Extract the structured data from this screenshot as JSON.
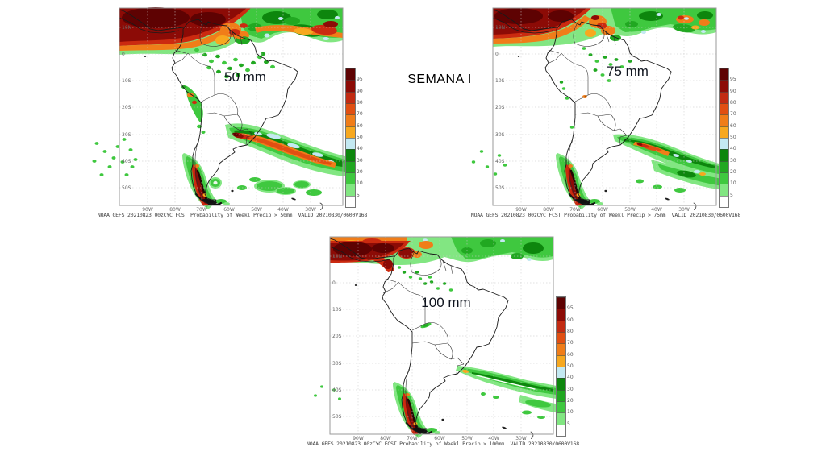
{
  "title": "SEMANA I",
  "panels": [
    {
      "threshold_label": "50 mm",
      "caption": "NOAA GEFS 20210823 00zCYC FCST Probability of Weekl Precip > 50mm  VALID 20210830/0600V168"
    },
    {
      "threshold_label": "75 mm",
      "caption": "NOAA GEFS 20210823 00zCYC FCST Probability of Weekl Precip > 75mm  VALID 20210830/0600V168"
    },
    {
      "threshold_label": "100 mm",
      "caption": "NOAA GEFS 20210823 00zCYC FCST Probability of Weekl Precip > 100mm  VALID 20210830/0600V168"
    }
  ],
  "axes": {
    "lat_labels": [
      "10N",
      "0",
      "10S",
      "20S",
      "30S",
      "40S",
      "50S"
    ],
    "lon_labels": [
      "90W",
      "80W",
      "70W",
      "60W",
      "50W",
      "40W",
      "30W"
    ]
  },
  "colorbar": {
    "tick_labels": [
      "95",
      "90",
      "80",
      "70",
      "60",
      "50",
      "40",
      "30",
      "20",
      "10",
      "5"
    ],
    "segment_colors_top_to_bottom": [
      "#5e0202",
      "#8c0b06",
      "#c22b12",
      "#e14f12",
      "#f07d19",
      "#f7a81f",
      "#c4e9f2",
      "#0d860d",
      "#21a821",
      "#3fc83f",
      "#82e682",
      "#ffffff"
    ]
  },
  "palette": {
    "g1": "#82e682",
    "g2": "#3fc83f",
    "g3": "#21a821",
    "g4": "#0d860d",
    "bl": "#c4e9f2",
    "o1": "#f7a81f",
    "o2": "#f07d19",
    "o3": "#e14f12",
    "r1": "#cb2a10",
    "r2": "#8c0b06",
    "r3": "#5e0202",
    "bk": "#200a04",
    "wh": "#ffffff"
  },
  "chart_data": {
    "type": "heatmap",
    "subtype": "geographic-probability-maps",
    "title": "SEMANA I",
    "region": "South America",
    "units": "%",
    "panels": [
      {
        "threshold_mm": 50,
        "label": "50 mm",
        "caption": "NOAA GEFS 20210823 00zCYC FCST Probability of Weekl Precip > 50mm  VALID 20210830/0600V168"
      },
      {
        "threshold_mm": 75,
        "label": "75 mm",
        "caption": "NOAA GEFS 20210823 00zCYC FCST Probability of Weekl Precip > 75mm  VALID 20210830/0600V168"
      },
      {
        "threshold_mm": 100,
        "label": "100 mm",
        "caption": "NOAA GEFS 20210823 00zCYC FCST Probability of Weekl Precip > 100mm  VALID 20210830/0600V168"
      }
    ],
    "colorbar_bins_percent": [
      5,
      10,
      20,
      30,
      40,
      50,
      60,
      70,
      80,
      90,
      95
    ],
    "colorbar_colors_low_to_high": [
      "#ffffff",
      "#82e682",
      "#3fc83f",
      "#21a821",
      "#0d860d",
      "#c4e9f2",
      "#f7a81f",
      "#f07d19",
      "#e14f12",
      "#c22b12",
      "#8c0b06",
      "#5e0202"
    ],
    "x_ticks": [
      "90W",
      "80W",
      "70W",
      "60W",
      "50W",
      "40W",
      "30W"
    ],
    "y_ticks": [
      "10N",
      "0",
      "10S",
      "20S",
      "30S",
      "40S",
      "50S"
    ],
    "grid": true,
    "legend_position": "right",
    "notable_features": [
      "High probability (dark red, >90%) band across Panama/Colombia/Venezuela and tropical Atlantic ITCZ in all panels",
      "Diagonal band from SE South America into the South Atlantic; red/orange core strongest at 50 mm, orange at 75 mm, green only at 100 mm",
      "Narrow very-high-probability strip along the southern Chile Andes (~38S-53S) in all panels",
      "Scattered green areas over the Amazon basin, largest for the 50 mm threshold"
    ]
  }
}
